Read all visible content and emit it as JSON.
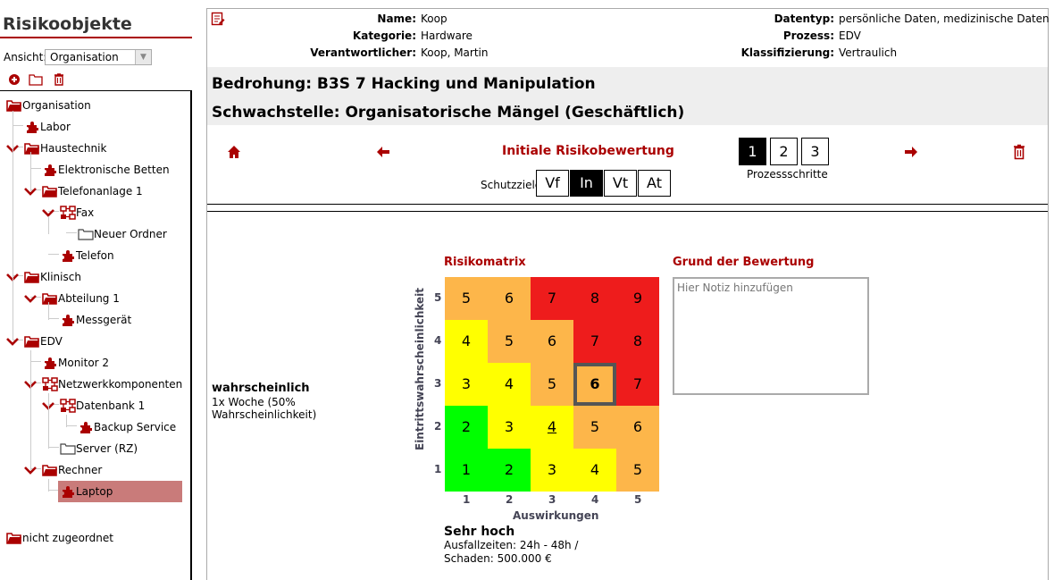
{
  "sidebar": {
    "title": "Risikoobjekte",
    "view_label": "Ansicht:",
    "view_value": "Organisation",
    "toolbar": [
      "add-icon",
      "folder-icon",
      "trash-icon"
    ],
    "tree": [
      {
        "label": "Organisation",
        "level": 0,
        "icon": "folder-open",
        "chevron": false
      },
      {
        "label": "Labor",
        "level": 1,
        "icon": "puzzle",
        "chevron": false
      },
      {
        "label": "Haustechnik",
        "level": 1,
        "icon": "folder-open",
        "chevron": true
      },
      {
        "label": "Elektronische Betten",
        "level": 2,
        "icon": "puzzle",
        "chevron": false
      },
      {
        "label": "Telefonanlage 1",
        "level": 2,
        "icon": "folder-open",
        "chevron": true
      },
      {
        "label": "Fax",
        "level": 3,
        "icon": "network",
        "chevron": true
      },
      {
        "label": "Neuer Ordner",
        "level": 4,
        "icon": "folder-gray",
        "chevron": false
      },
      {
        "label": "Telefon",
        "level": 3,
        "icon": "puzzle",
        "chevron": false
      },
      {
        "label": "Klinisch",
        "level": 1,
        "icon": "folder-open",
        "chevron": true
      },
      {
        "label": "Abteilung 1",
        "level": 2,
        "icon": "folder-open",
        "chevron": true
      },
      {
        "label": "Messgerät",
        "level": 3,
        "icon": "puzzle",
        "chevron": false
      },
      {
        "label": "EDV",
        "level": 1,
        "icon": "folder-open",
        "chevron": true
      },
      {
        "label": "Monitor 2",
        "level": 2,
        "icon": "puzzle",
        "chevron": false
      },
      {
        "label": "Netzwerkkomponenten",
        "level": 2,
        "icon": "network",
        "chevron": true
      },
      {
        "label": "Datenbank 1",
        "level": 3,
        "icon": "network",
        "chevron": true
      },
      {
        "label": "Backup Service",
        "level": 4,
        "icon": "puzzle",
        "chevron": false
      },
      {
        "label": "Server (RZ)",
        "level": 3,
        "icon": "folder-gray",
        "chevron": false
      },
      {
        "label": "Rechner",
        "level": 2,
        "icon": "folder-open",
        "chevron": true
      },
      {
        "label": "Laptop",
        "level": 3,
        "icon": "puzzle",
        "chevron": false,
        "selected": true
      }
    ],
    "unassigned": "nicht zugeordnet"
  },
  "info": {
    "left": [
      [
        "Name:",
        "Koop"
      ],
      [
        "Kategorie:",
        "Hardware"
      ],
      [
        "Verantwortlicher:",
        "Koop, Martin"
      ]
    ],
    "right": [
      [
        "Datentyp:",
        "persönliche Daten, medizinische Daten"
      ],
      [
        "Prozess:",
        "EDV"
      ],
      [
        "Klassifizierung:",
        "Vertraulich"
      ]
    ]
  },
  "threat": "Bedrohung: B3S 7 Hacking und Manipulation",
  "weakness": "Schwachstelle: Organisatorische Mängel (Geschäftlich)",
  "nav": {
    "title": "Initiale Risikobewertung",
    "goals_label": "Schutzziele",
    "goals": [
      "Vf",
      "In",
      "Vt",
      "At"
    ],
    "active_goal": "In",
    "steps": [
      "1",
      "2",
      "3"
    ],
    "active_step": "1",
    "steps_label": "Prozessschritte"
  },
  "likelihood": {
    "title": "wahrscheinlich",
    "desc": "1x Woche (50% Wahrscheinlichkeit)"
  },
  "matrix": {
    "title": "Risikomatrix",
    "ylabel": "Eintrittswahrscheinlichkeit",
    "xlabel": "Auswirkungen",
    "x_ticks": [
      "1",
      "2",
      "3",
      "4",
      "5"
    ],
    "y_ticks": [
      "5",
      "4",
      "3",
      "2",
      "1"
    ],
    "rows": [
      [
        5,
        6,
        7,
        8,
        9
      ],
      [
        4,
        5,
        6,
        7,
        8
      ],
      [
        3,
        4,
        5,
        6,
        7
      ],
      [
        2,
        3,
        4,
        5,
        6
      ],
      [
        1,
        2,
        3,
        4,
        5
      ]
    ],
    "levels": [
      [
        "o",
        "o",
        "r",
        "r",
        "r"
      ],
      [
        "y",
        "o",
        "o",
        "r",
        "r"
      ],
      [
        "y",
        "y",
        "o",
        "o",
        "r"
      ],
      [
        "g",
        "y",
        "y",
        "o",
        "o"
      ],
      [
        "g",
        "g",
        "y",
        "y",
        "o"
      ]
    ],
    "colors": {
      "g": "#00ff00",
      "y": "#ffff00",
      "o": "#fdb64a",
      "r": "#ee1c1c"
    },
    "selected": {
      "impact": 4,
      "likelihood": 3
    },
    "underlined": {
      "impact": 3,
      "likelihood": 2
    }
  },
  "impact": {
    "title": "Sehr hoch",
    "line1": "Ausfallzeiten: 24h - 48h /",
    "line2": "Schaden: 500.000 €"
  },
  "note": {
    "title": "Grund der Bewertung",
    "placeholder": "Hier Notiz hinzufügen"
  }
}
